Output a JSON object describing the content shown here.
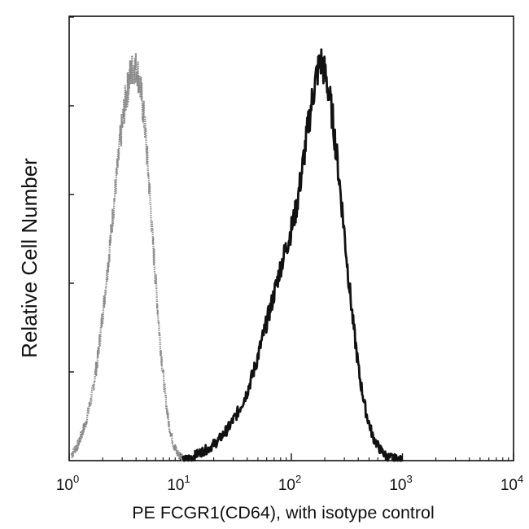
{
  "chart_data": {
    "type": "line",
    "title": "",
    "xlabel": "PE  FCGR1(CD64),  with isotype control",
    "ylabel": "Relative Cell Number",
    "x_scale": "log",
    "xlim": [
      1,
      10000
    ],
    "ylim": [
      0,
      100
    ],
    "grid": false,
    "legend": "none",
    "x_ticks": [
      {
        "base": "10",
        "exp": "0",
        "value": 1
      },
      {
        "base": "10",
        "exp": "1",
        "value": 10
      },
      {
        "base": "10",
        "exp": "2",
        "value": 100
      },
      {
        "base": "10",
        "exp": "3",
        "value": 1000
      },
      {
        "base": "10",
        "exp": "4",
        "value": 10000
      }
    ],
    "series": [
      {
        "style": "dotted-gray",
        "color": "#8a8a8a",
        "x": [
          1.05,
          1.2,
          1.4,
          1.6,
          1.8,
          2.0,
          2.3,
          2.6,
          2.9,
          3.2,
          3.5,
          3.8,
          4.1,
          4.4,
          4.8,
          5.2,
          5.6,
          6.1,
          6.6,
          7.2,
          7.8,
          8.5,
          9.3,
          10.2,
          11.5
        ],
        "y": [
          1.5,
          4,
          9,
          16,
          25,
          36,
          52,
          67,
          80,
          89,
          95,
          98,
          97,
          92,
          83,
          70,
          56,
          42,
          29,
          18,
          10,
          5,
          2,
          1,
          0.5
        ]
      },
      {
        "style": "solid-black",
        "color": "#111111",
        "x": [
          10.5,
          13,
          15,
          18,
          22,
          27,
          33,
          40,
          48,
          57,
          68,
          80,
          95,
          110,
          125,
          140,
          155,
          170,
          185,
          200,
          215,
          235,
          260,
          290,
          320,
          360,
          410,
          470,
          540,
          620,
          720,
          850,
          1000
        ],
        "y": [
          0,
          1,
          2,
          3,
          5,
          8,
          12,
          17,
          24,
          32,
          40,
          48,
          55,
          62,
          72,
          82,
          90,
          96,
          99,
          96,
          92,
          85,
          74,
          61,
          48,
          34,
          21,
          12,
          6,
          3,
          1,
          0.5,
          0
        ]
      }
    ]
  }
}
